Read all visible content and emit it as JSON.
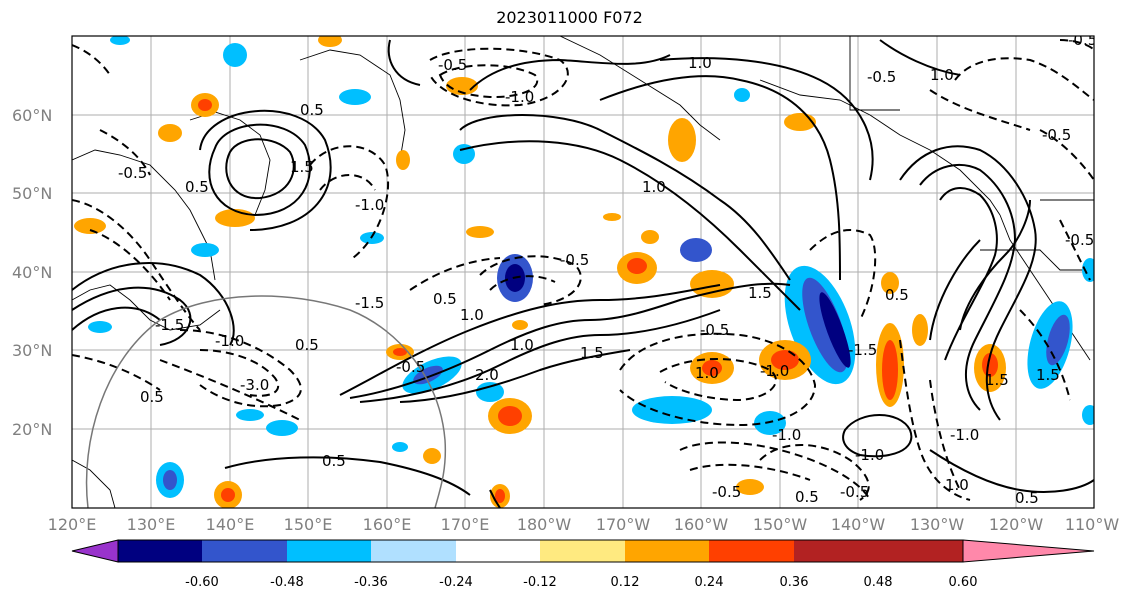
{
  "title": "2023011000 F072",
  "lat_labels": [
    "60°N",
    "50°N",
    "40°N",
    "30°N",
    "20°N"
  ],
  "lon_labels": [
    "120°E",
    "130°E",
    "140°E",
    "150°E",
    "160°E",
    "170°E",
    "180°W",
    "170°W",
    "160°W",
    "150°W",
    "140°W",
    "130°W",
    "120°W",
    "110°W"
  ],
  "colorbar": {
    "colors": [
      "#9933cc",
      "#000080",
      "#3355cc",
      "#00bfff",
      "#b0e0ff",
      "#ffffff",
      "#ffea80",
      "#ffa500",
      "#ff4000",
      "#b22222",
      "#ff88aa"
    ],
    "tick_labels": [
      "-0.60",
      "-0.48",
      "-0.36",
      "-0.24",
      "-0.12",
      "0.12",
      "0.24",
      "0.36",
      "0.48",
      "0.60"
    ]
  },
  "contour_labels": [
    "-0.5",
    "1.0",
    "-0.5",
    "-1.0",
    "0.5",
    "-0.5",
    "1.5",
    "-0.5",
    "-1.0",
    "1.0",
    "0.5",
    "-0.5",
    "1.0",
    "-1.5",
    "1.5",
    "-1.5",
    "0.5",
    "-1.0",
    "-0.5",
    "1.5",
    "-1.5",
    "1.0",
    "-1.0",
    "-3.0",
    "0.5",
    "-0.5",
    "1.0",
    "2.0",
    "1.5",
    "-1.0",
    "1.5",
    "0.5",
    "-0.5",
    "-1.0",
    "1.0",
    "0.5",
    "-0.5",
    "0.5",
    "1.0",
    "-0.5",
    "0.5",
    "-1.0",
    "0.5",
    "-0.5"
  ]
}
